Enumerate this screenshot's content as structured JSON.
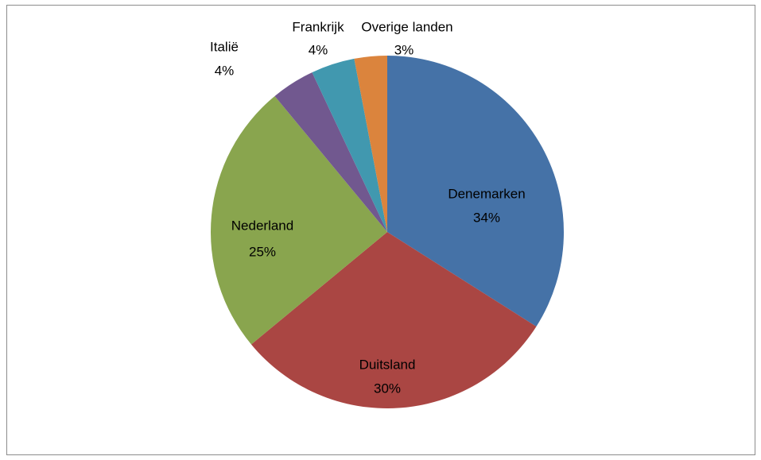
{
  "chart_data": {
    "type": "pie",
    "categories": [
      "Denemarken",
      "Duitsland",
      "Nederland",
      "Italië",
      "Frankrijk",
      "Overige landen"
    ],
    "values": [
      34,
      30,
      25,
      4,
      4,
      3
    ],
    "value_labels": [
      "34%",
      "30%",
      "25%",
      "4%",
      "4%",
      "3%"
    ],
    "colors": [
      "#4572a7",
      "#aa4643",
      "#89a54e",
      "#71588f",
      "#4198af",
      "#db843d"
    ]
  }
}
